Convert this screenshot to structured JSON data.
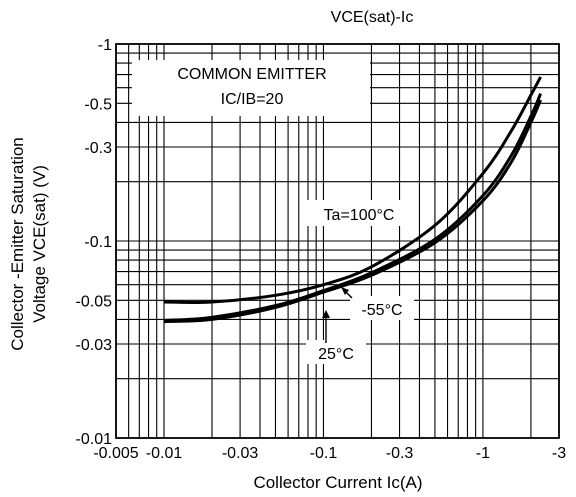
{
  "chart_data": {
    "type": "line",
    "title": "VCE(sat)-Ic",
    "xlabel": "Collector Current  Ic(A)",
    "ylabel_line1": "Collector -Emitter Saturation",
    "ylabel_line2": "Voltage VCE(sat) (V)",
    "x_scale": "log",
    "y_scale": "log",
    "xlim": [
      -0.005,
      -3
    ],
    "ylim": [
      -0.01,
      -1
    ],
    "x_ticks": [
      -0.005,
      -0.01,
      -0.03,
      -0.1,
      -0.3,
      -1,
      -3
    ],
    "x_tick_labels": [
      "-0.005",
      "-0.01",
      "-0.03",
      "-0.1",
      "-0.3",
      "-1",
      "-3"
    ],
    "y_ticks": [
      -1,
      -0.5,
      -0.3,
      -0.1,
      -0.05,
      -0.03,
      -0.01
    ],
    "y_tick_labels": [
      "-1",
      "-0.5",
      "-0.3",
      "-0.1",
      "-0.05",
      "-0.03",
      "-0.01"
    ],
    "grid": true,
    "legend_box": {
      "line1": "COMMON EMITTER",
      "line2": "IC/IB=20"
    },
    "series": [
      {
        "name": "Ta=100°C",
        "x": [
          -0.01,
          -0.02,
          -0.05,
          -0.1,
          -0.2,
          -0.5,
          -1.0,
          -1.5,
          -2.0,
          -2.3
        ],
        "y": [
          -0.049,
          -0.049,
          -0.053,
          -0.06,
          -0.074,
          -0.12,
          -0.22,
          -0.36,
          -0.55,
          -0.68
        ]
      },
      {
        "name": "-55°C",
        "x": [
          -0.01,
          -0.02,
          -0.05,
          -0.1,
          -0.2,
          -0.5,
          -1.0,
          -1.5,
          -2.0,
          -2.3
        ],
        "y": [
          -0.039,
          -0.04,
          -0.046,
          -0.055,
          -0.067,
          -0.098,
          -0.16,
          -0.25,
          -0.4,
          -0.52
        ]
      },
      {
        "name": "25°C",
        "x": [
          -0.01,
          -0.02,
          -0.05,
          -0.1,
          -0.2,
          -0.5,
          -1.0,
          -1.5,
          -2.0,
          -2.3
        ],
        "y": [
          -0.0395,
          -0.041,
          -0.047,
          -0.056,
          -0.069,
          -0.102,
          -0.17,
          -0.27,
          -0.43,
          -0.56
        ]
      }
    ],
    "annotations": [
      "Ta=100°C",
      "-55°C",
      "25°C"
    ]
  }
}
